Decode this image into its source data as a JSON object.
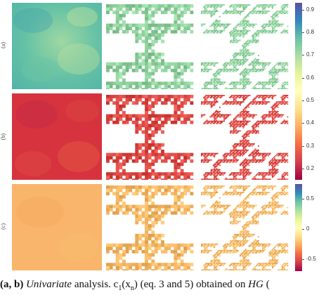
{
  "row_labels": [
    "(a)",
    "(b)",
    "(c)"
  ],
  "colorbar_top": {
    "ticks": [
      "0.9",
      "0.8",
      "0.7",
      "0.6",
      "0.5",
      "0.4",
      "0.3",
      "0.2"
    ],
    "range": [
      0.15,
      0.93
    ],
    "colormap": "Spectral"
  },
  "colorbar_bottom": {
    "ticks": [
      "0.5",
      "0",
      "-0.5"
    ],
    "range": [
      -0.7,
      0.75
    ],
    "colormap": "Spectral"
  },
  "panels": {
    "row_a": {
      "field_color": "#5fbfa4",
      "pattern_color": "#8fd19d"
    },
    "row_b": {
      "field_color": "#d7363f",
      "pattern_color": "#dd4a45"
    },
    "row_c": {
      "field_color": "#f8b469",
      "pattern_color": "#f6b865"
    }
  },
  "caption": {
    "part1": "(a, b)",
    "part2": " Univariate",
    "part3": " analysis. c",
    "part4": "1",
    "part5": "(x",
    "part6": "n",
    "part7": ") (eq. 3 and 5) obtained on ",
    "part8": "HG",
    "part9": " ("
  }
}
